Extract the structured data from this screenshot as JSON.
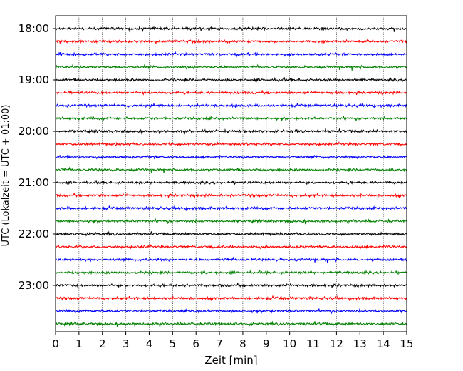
{
  "chart_data": {
    "type": "line",
    "title": "",
    "xlabel": "Zeit  [min]",
    "ylabel": "UTC (Lokalzeit = UTC + 01:00)",
    "xlim": [
      0,
      15
    ],
    "x_ticks": [
      "0",
      "1",
      "2",
      "3",
      "4",
      "5",
      "6",
      "7",
      "8",
      "9",
      "10",
      "11",
      "12",
      "13",
      "14",
      "15"
    ],
    "y_ticks": [
      "18:00",
      "19:00",
      "20:00",
      "21:00",
      "22:00",
      "23:00"
    ],
    "trace_interval_minutes": 15,
    "trace_start": "18:00",
    "trace_count": 24,
    "trace_colors": [
      "#000000",
      "#ff0000",
      "#0000ff",
      "#008000"
    ],
    "grid": "vertical dotted lines at each minute",
    "series": [
      {
        "start": "18:00",
        "color": "#000000"
      },
      {
        "start": "18:15",
        "color": "#ff0000"
      },
      {
        "start": "18:30",
        "color": "#0000ff"
      },
      {
        "start": "18:45",
        "color": "#008000"
      },
      {
        "start": "19:00",
        "color": "#000000"
      },
      {
        "start": "19:15",
        "color": "#ff0000"
      },
      {
        "start": "19:30",
        "color": "#0000ff"
      },
      {
        "start": "19:45",
        "color": "#008000"
      },
      {
        "start": "20:00",
        "color": "#000000"
      },
      {
        "start": "20:15",
        "color": "#ff0000"
      },
      {
        "start": "20:30",
        "color": "#0000ff"
      },
      {
        "start": "20:45",
        "color": "#008000"
      },
      {
        "start": "21:00",
        "color": "#000000"
      },
      {
        "start": "21:15",
        "color": "#ff0000"
      },
      {
        "start": "21:30",
        "color": "#0000ff"
      },
      {
        "start": "21:45",
        "color": "#008000"
      },
      {
        "start": "22:00",
        "color": "#000000"
      },
      {
        "start": "22:15",
        "color": "#ff0000"
      },
      {
        "start": "22:30",
        "color": "#0000ff"
      },
      {
        "start": "22:45",
        "color": "#008000"
      },
      {
        "start": "23:00",
        "color": "#000000"
      },
      {
        "start": "23:15",
        "color": "#ff0000"
      },
      {
        "start": "23:30",
        "color": "#0000ff"
      },
      {
        "start": "23:45",
        "color": "#008000"
      }
    ]
  }
}
